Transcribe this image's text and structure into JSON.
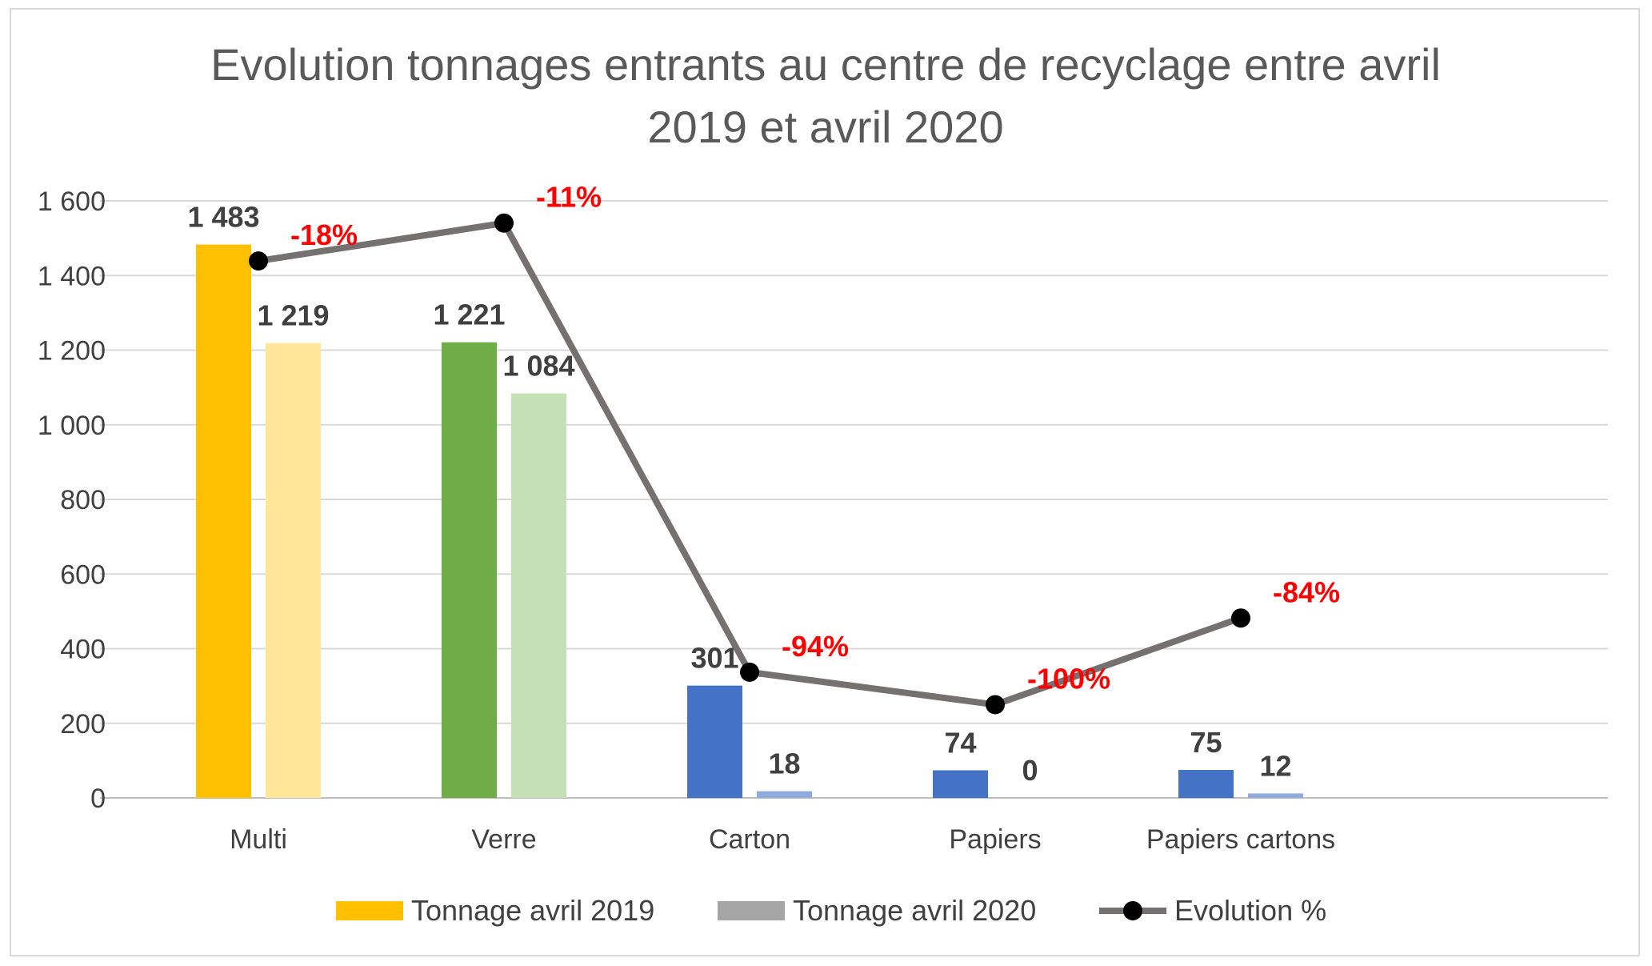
{
  "chart_data": {
    "type": "bar",
    "title_line1": "Evolution tonnages entrants au centre de recyclage entre avril",
    "title_line2": "2019 et avril 2020",
    "categories": [
      "Multi",
      "Verre",
      "Carton",
      "Papiers",
      "Papiers cartons"
    ],
    "series": [
      {
        "name": "Tonnage avril 2019",
        "values": [
          1483,
          1221,
          301,
          74,
          75
        ],
        "labels": [
          "1 483",
          "1 221",
          "301",
          "74",
          "75"
        ],
        "colors": [
          "#ffc000",
          "#70ad47",
          "#4472c4",
          "#4472c4",
          "#4472c4"
        ],
        "legend_color": "#ffc000"
      },
      {
        "name": "Tonnage avril 2020",
        "values": [
          1219,
          1084,
          18,
          0,
          12
        ],
        "labels": [
          "1 219",
          "1 084",
          "18",
          "0",
          "12"
        ],
        "colors": [
          "#ffe699",
          "#c5e0b4",
          "#8faadc",
          "#8faadc",
          "#8faadc"
        ],
        "legend_color": "#a5a5a5"
      },
      {
        "name": "Evolution %",
        "type": "line",
        "values": [
          -18,
          -11,
          -94,
          -100,
          -84
        ],
        "labels": [
          "-18%",
          "-11%",
          "-94%",
          "-100%",
          "-84%"
        ],
        "line_color": "#767171",
        "marker_color": "#000000",
        "label_color": "#ff0000"
      }
    ],
    "y_ticks": [
      "0",
      "200",
      "400",
      "600",
      "800",
      "1 000",
      "1 200",
      "1 400",
      "1 600"
    ],
    "ylim": [
      0,
      1600
    ],
    "grid": true,
    "legend_position": "bottom"
  }
}
